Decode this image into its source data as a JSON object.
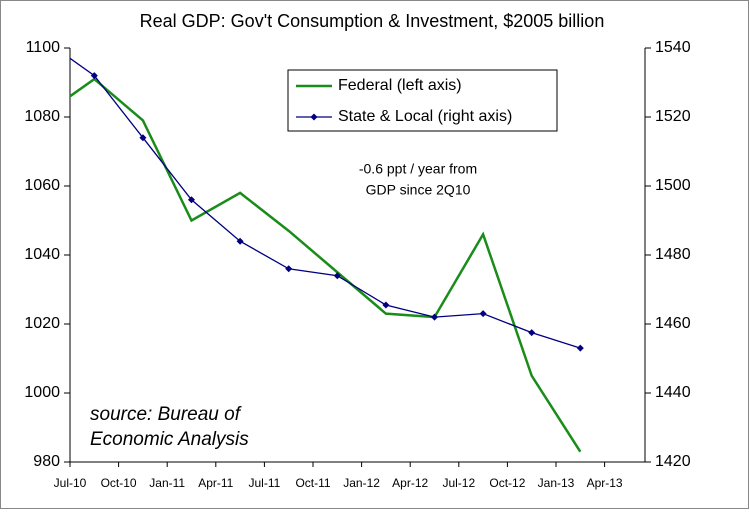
{
  "chart_data": {
    "type": "line",
    "title": "Real GDP: Gov't Consumption & Investment, $2005 billion",
    "annotation": [
      "-0.6 ppt / year from",
      "GDP since 2Q10"
    ],
    "source": [
      "source: Bureau of",
      "Economic Analysis"
    ],
    "categories": [
      "Jul-10",
      "Oct-10",
      "Jan-11",
      "Apr-11",
      "Jul-11",
      "Oct-11",
      "Jan-12",
      "Apr-12",
      "Jul-12",
      "Oct-12",
      "Jan-13",
      "Apr-13"
    ],
    "series": [
      {
        "name": "Federal (left axis)",
        "color": "#1a8c1a",
        "marker": false,
        "values": [
          1081,
          1091,
          1079,
          1050,
          1058,
          1047,
          1035,
          1023,
          1022,
          1046,
          1005,
          983
        ]
      },
      {
        "name": "State & Local (right axis)",
        "color": "#000080",
        "axis": "y2",
        "marker": true,
        "values": [
          1542,
          1532,
          1514,
          1496,
          1484,
          1476,
          1474,
          1465.5,
          1462,
          1463,
          1457.5,
          1453
        ]
      }
    ],
    "ylim": [
      980,
      1100
    ],
    "yticks": [
      980,
      1000,
      1020,
      1040,
      1060,
      1080,
      1100
    ],
    "y2lim": [
      1420,
      1540
    ],
    "y2ticks": [
      1420,
      1440,
      1460,
      1480,
      1500,
      1520,
      1540
    ],
    "grid": false,
    "legend": "top"
  }
}
